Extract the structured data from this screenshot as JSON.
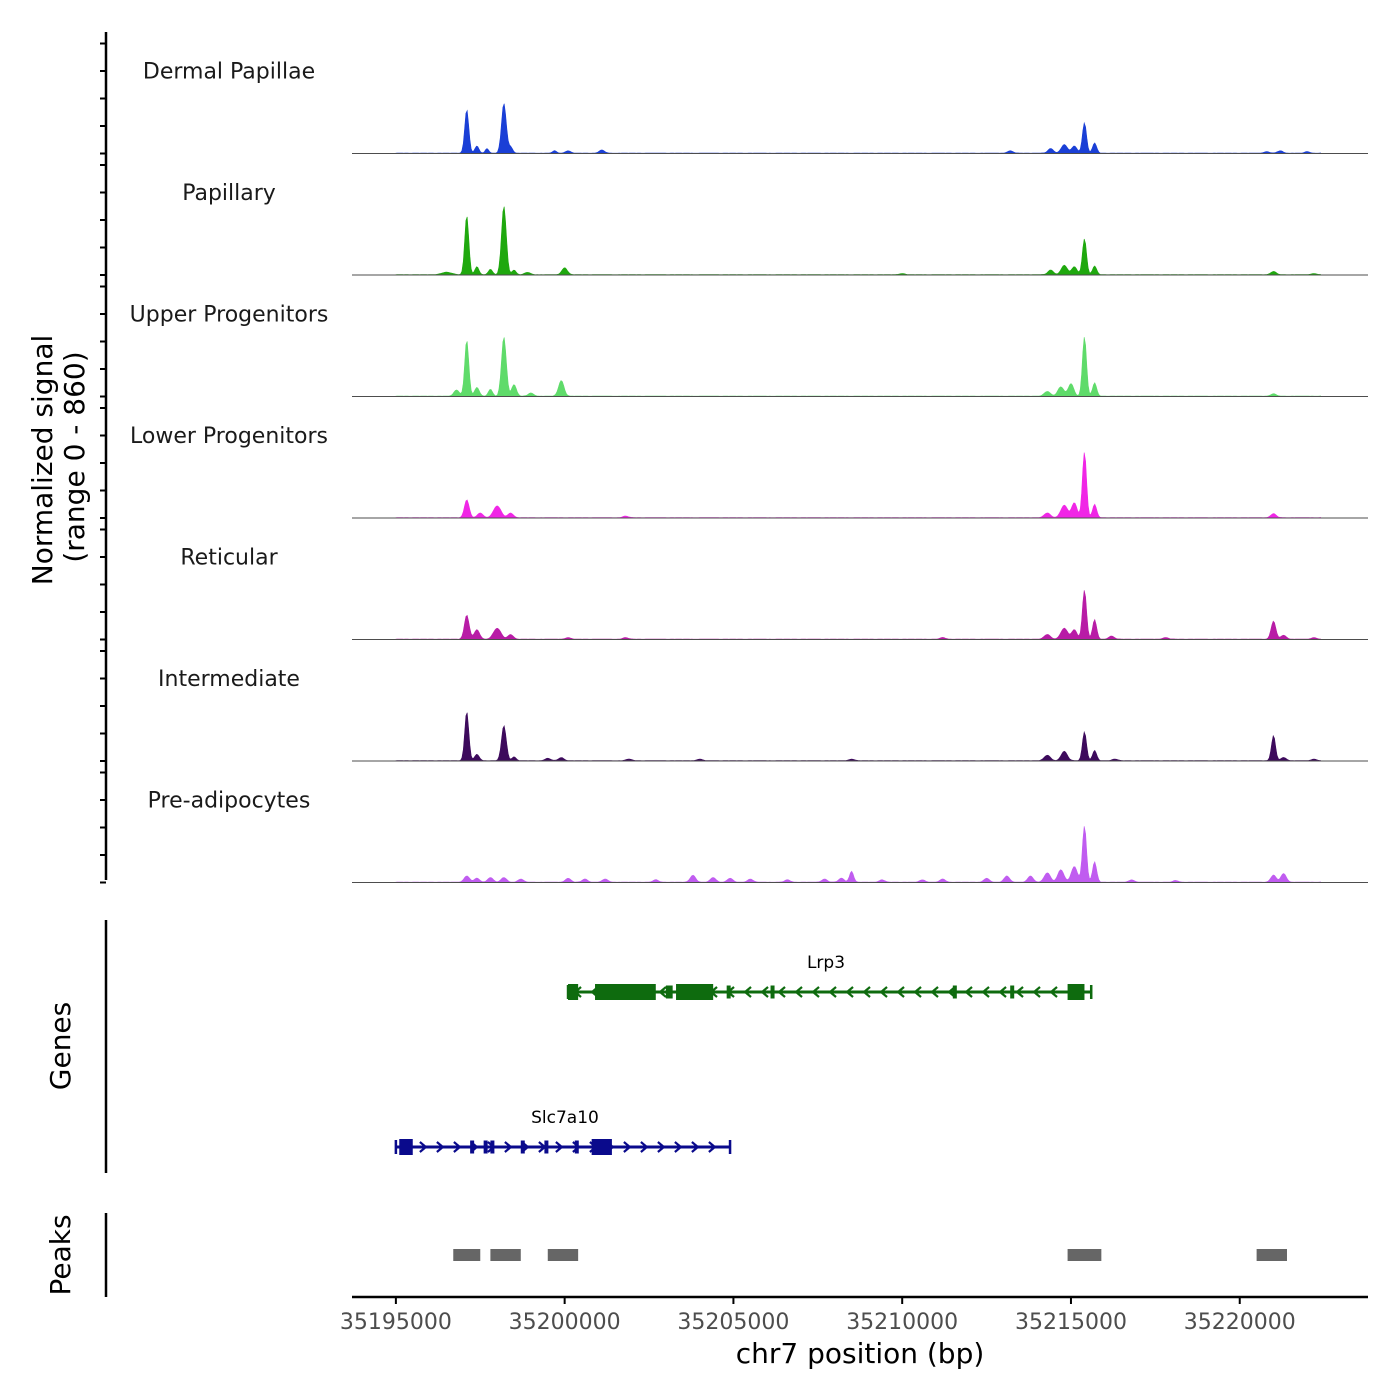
{
  "chart_data": {
    "type": "area",
    "chromosome": "chr7",
    "xlabel": "chr7 position (bp)",
    "ylabel_line1": "Normalized signal",
    "ylabel_line2": "(range 0 - 860)",
    "yrange": [
      0,
      860
    ],
    "xlim": [
      35193700,
      35223800
    ],
    "xticks": [
      35195000,
      35200000,
      35205000,
      35210000,
      35215000,
      35220000
    ],
    "xtick_labels": [
      "35195000",
      "35200000",
      "35205000",
      "35210000",
      "35215000",
      "35220000"
    ],
    "coverage_tracks": [
      {
        "name": "Dermal Papillae",
        "color": "#1a3fd6",
        "peaks": [
          [
            35197100,
            560,
            60
          ],
          [
            35197400,
            90,
            60
          ],
          [
            35197700,
            60,
            50
          ],
          [
            35198200,
            640,
            70
          ],
          [
            35198400,
            80,
            60
          ],
          [
            35199700,
            30,
            60
          ],
          [
            35200100,
            30,
            80
          ],
          [
            35201100,
            40,
            80
          ],
          [
            35213200,
            30,
            80
          ],
          [
            35214400,
            60,
            80
          ],
          [
            35214800,
            110,
            90
          ],
          [
            35215100,
            90,
            80
          ],
          [
            35215400,
            390,
            60
          ],
          [
            35215700,
            130,
            60
          ],
          [
            35220800,
            20,
            80
          ],
          [
            35221200,
            30,
            80
          ],
          [
            35222000,
            20,
            70
          ]
        ]
      },
      {
        "name": "Papillary",
        "color": "#1fa80e",
        "peaks": [
          [
            35196500,
            30,
            150
          ],
          [
            35197100,
            760,
            60
          ],
          [
            35197400,
            100,
            60
          ],
          [
            35197800,
            70,
            60
          ],
          [
            35198200,
            880,
            70
          ],
          [
            35198500,
            60,
            60
          ],
          [
            35198900,
            30,
            80
          ],
          [
            35200000,
            90,
            80
          ],
          [
            35210000,
            15,
            80
          ],
          [
            35214400,
            60,
            80
          ],
          [
            35214800,
            120,
            90
          ],
          [
            35215100,
            100,
            80
          ],
          [
            35215400,
            460,
            60
          ],
          [
            35215700,
            110,
            60
          ],
          [
            35221000,
            40,
            80
          ],
          [
            35222200,
            15,
            80
          ]
        ]
      },
      {
        "name": "Upper Progenitors",
        "color": "#5fdb6a",
        "peaks": [
          [
            35196800,
            80,
            80
          ],
          [
            35197100,
            720,
            60
          ],
          [
            35197400,
            110,
            70
          ],
          [
            35197800,
            90,
            60
          ],
          [
            35198200,
            760,
            70
          ],
          [
            35198500,
            150,
            70
          ],
          [
            35199000,
            40,
            80
          ],
          [
            35199900,
            200,
            80
          ],
          [
            35214300,
            60,
            90
          ],
          [
            35214700,
            120,
            90
          ],
          [
            35215000,
            160,
            80
          ],
          [
            35215400,
            760,
            60
          ],
          [
            35215700,
            170,
            60
          ],
          [
            35221000,
            30,
            80
          ]
        ]
      },
      {
        "name": "Lower Progenitors",
        "color": "#f026e6",
        "peaks": [
          [
            35197100,
            230,
            70
          ],
          [
            35197500,
            60,
            80
          ],
          [
            35198000,
            150,
            110
          ],
          [
            35198400,
            60,
            80
          ],
          [
            35201800,
            20,
            80
          ],
          [
            35214300,
            60,
            90
          ],
          [
            35214800,
            160,
            100
          ],
          [
            35215100,
            190,
            80
          ],
          [
            35215400,
            840,
            60
          ],
          [
            35215700,
            170,
            60
          ],
          [
            35221000,
            50,
            80
          ]
        ]
      },
      {
        "name": "Reticular",
        "color": "#b81ca6",
        "peaks": [
          [
            35197100,
            310,
            70
          ],
          [
            35197400,
            120,
            80
          ],
          [
            35198000,
            140,
            110
          ],
          [
            35198400,
            60,
            80
          ],
          [
            35200100,
            20,
            80
          ],
          [
            35201800,
            20,
            80
          ],
          [
            35211200,
            20,
            80
          ],
          [
            35214300,
            60,
            90
          ],
          [
            35214800,
            140,
            100
          ],
          [
            35215100,
            120,
            80
          ],
          [
            35215400,
            630,
            60
          ],
          [
            35215700,
            250,
            60
          ],
          [
            35216200,
            40,
            80
          ],
          [
            35217800,
            20,
            80
          ],
          [
            35221000,
            230,
            70
          ],
          [
            35221300,
            50,
            80
          ],
          [
            35222200,
            20,
            80
          ]
        ]
      },
      {
        "name": "Intermediate",
        "color": "#3d0a5c",
        "peaks": [
          [
            35197100,
            630,
            60
          ],
          [
            35197400,
            80,
            70
          ],
          [
            35198200,
            450,
            70
          ],
          [
            35198500,
            50,
            60
          ],
          [
            35199500,
            30,
            80
          ],
          [
            35199900,
            40,
            80
          ],
          [
            35201900,
            20,
            80
          ],
          [
            35204000,
            20,
            80
          ],
          [
            35208500,
            20,
            80
          ],
          [
            35214300,
            70,
            90
          ],
          [
            35214800,
            120,
            90
          ],
          [
            35215400,
            370,
            60
          ],
          [
            35215700,
            130,
            60
          ],
          [
            35216300,
            20,
            80
          ],
          [
            35221000,
            320,
            60
          ],
          [
            35221300,
            40,
            80
          ],
          [
            35222200,
            20,
            80
          ]
        ]
      },
      {
        "name": "Pre-adipocytes",
        "color": "#c05cf0",
        "peaks": [
          [
            35197100,
            80,
            80
          ],
          [
            35197400,
            50,
            80
          ],
          [
            35197800,
            60,
            80
          ],
          [
            35198200,
            60,
            80
          ],
          [
            35198700,
            40,
            80
          ],
          [
            35200100,
            50,
            80
          ],
          [
            35200600,
            40,
            80
          ],
          [
            35201200,
            40,
            80
          ],
          [
            35202700,
            30,
            80
          ],
          [
            35203800,
            90,
            80
          ],
          [
            35204400,
            60,
            80
          ],
          [
            35204900,
            50,
            80
          ],
          [
            35205500,
            40,
            80
          ],
          [
            35206600,
            30,
            80
          ],
          [
            35207700,
            40,
            80
          ],
          [
            35208200,
            50,
            80
          ],
          [
            35208500,
            140,
            60
          ],
          [
            35209400,
            30,
            80
          ],
          [
            35210600,
            30,
            80
          ],
          [
            35211200,
            40,
            80
          ],
          [
            35212500,
            50,
            80
          ],
          [
            35213100,
            80,
            80
          ],
          [
            35213800,
            80,
            80
          ],
          [
            35214300,
            120,
            90
          ],
          [
            35214700,
            160,
            90
          ],
          [
            35215100,
            200,
            90
          ],
          [
            35215400,
            720,
            60
          ],
          [
            35215700,
            260,
            60
          ],
          [
            35216800,
            30,
            80
          ],
          [
            35218100,
            20,
            80
          ],
          [
            35221000,
            90,
            80
          ],
          [
            35221300,
            110,
            80
          ]
        ]
      }
    ],
    "genes": [
      {
        "name": "Lrp3",
        "strand": "-",
        "color": "#0e6b0e",
        "start": 35200100,
        "end": 35215600,
        "exons": [
          [
            35200100,
            35200400
          ],
          [
            35200900,
            35202700
          ],
          [
            35203000,
            35203200
          ],
          [
            35203300,
            35204400
          ],
          [
            35204800,
            35204900
          ],
          [
            35206100,
            35206200
          ],
          [
            35211500,
            35211600
          ],
          [
            35213200,
            35213300
          ],
          [
            35214900,
            35215400
          ]
        ]
      },
      {
        "name": "Slc7a10",
        "strand": "+",
        "color": "#0a0a8c",
        "start": 35195000,
        "end": 35204900,
        "exons": [
          [
            35195100,
            35195500
          ],
          [
            35197200,
            35197300
          ],
          [
            35197600,
            35197700
          ],
          [
            35197800,
            35197900
          ],
          [
            35198700,
            35198800
          ],
          [
            35199400,
            35199500
          ],
          [
            35200300,
            35200400
          ],
          [
            35200800,
            35201400
          ]
        ]
      }
    ],
    "peaks_track": [
      [
        35196700,
        35197500
      ],
      [
        35197800,
        35198700
      ],
      [
        35199500,
        35200400
      ],
      [
        35214900,
        35215900
      ],
      [
        35220500,
        35221400
      ]
    ],
    "track_labels": {
      "genes": "Genes",
      "peaks": "Peaks"
    }
  }
}
